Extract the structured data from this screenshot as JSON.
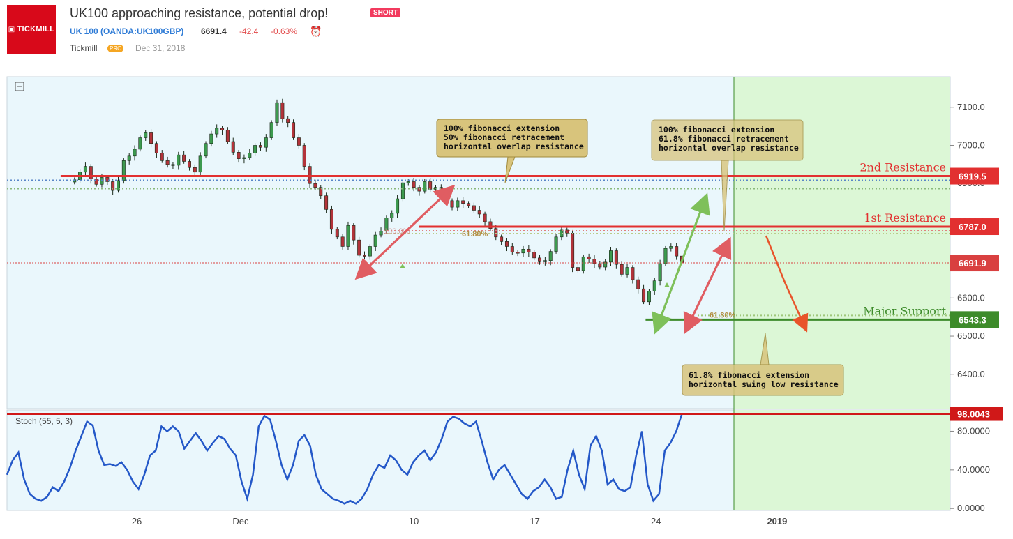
{
  "header": {
    "logo_text": "TICKMILL",
    "title": "UK100 approaching resistance, potential drop!",
    "badge": "SHORT",
    "symbol": "UK 100 (OANDA:UK100GBP)",
    "price": "6691.4",
    "change": "-42.4",
    "change_pct": "-0.63%",
    "clock_icon": "alarm-clock-icon",
    "author": "Tickmill",
    "author_badge": "PRO",
    "date": "Dec 31, 2018"
  },
  "chart_data": [
    {
      "type": "candlestick",
      "symbol": "UK100",
      "ylim": [
        6310,
        7180
      ],
      "y_ticks": [
        "7100.0",
        "7000.0",
        "6900.0",
        "6800.0",
        "6700.0",
        "6600.0",
        "6500.0",
        "6400.0"
      ],
      "x_ticks": [
        "26",
        "Dec",
        "10",
        "17",
        "24",
        "2019"
      ],
      "x_tick_values": [
        26,
        32,
        42,
        49,
        56,
        63
      ],
      "x_range": [
        18.5,
        73
      ],
      "close": [
        6910,
        6930,
        6945,
        6912,
        6898,
        6916,
        6905,
        6882,
        6908,
        6960,
        6972,
        6990,
        7020,
        7033,
        7005,
        6980,
        6960,
        6950,
        6948,
        6975,
        6958,
        6942,
        6930,
        6972,
        7005,
        7030,
        7045,
        7040,
        7010,
        6982,
        6965,
        6968,
        6980,
        7000,
        6995,
        7020,
        7060,
        7112,
        7070,
        7060,
        7020,
        7000,
        6945,
        6900,
        6890,
        6868,
        6832,
        6780,
        6760,
        6735,
        6790,
        6752,
        6712,
        6710,
        6735,
        6765,
        6775,
        6810,
        6822,
        6860,
        6902,
        6905,
        6890,
        6880,
        6905,
        6885,
        6890,
        6875,
        6855,
        6838,
        6855,
        6848,
        6842,
        6830,
        6820,
        6800,
        6782,
        6760,
        6748,
        6735,
        6720,
        6718,
        6728,
        6720,
        6705,
        6695,
        6698,
        6722,
        6760,
        6778,
        6770,
        6680,
        6672,
        6708,
        6702,
        6690,
        6681,
        6694,
        6724,
        6688,
        6662,
        6680,
        6648,
        6624,
        6590,
        6618,
        6645,
        6690,
        6730,
        6735,
        6710,
        6692
      ],
      "levels": [
        {
          "label": "2nd Resistance",
          "value": "6919.5",
          "color": "#e23030"
        },
        {
          "label": "1st Resistance",
          "value": "6787.0",
          "color": "#e23030"
        },
        {
          "label": "Major Support",
          "value": "6543.3",
          "color": "#3d8b2a"
        }
      ],
      "last_price": "6691.9",
      "fib_labels": [
        "61.80%",
        "100.0%",
        "61.80%"
      ],
      "annotations": [
        "100% fibonacci extension\n50% fibonacci retracement\nhorizontal overlap resistance",
        "100% fibonacci extension\n61.8% fibonacci retracement\nhorizontal overlap resistance",
        "61.8% fibonacci extension\nhorizontal swing low resistance"
      ]
    },
    {
      "type": "line",
      "title": "Stoch (55, 5, 3)",
      "ylim": [
        -2,
        102
      ],
      "y_ticks": [
        "80.0000",
        "40.0000",
        "0.0000"
      ],
      "current_value": "98.0043",
      "values": [
        35,
        50,
        58,
        30,
        15,
        10,
        8,
        12,
        22,
        18,
        28,
        42,
        60,
        75,
        90,
        86,
        60,
        45,
        46,
        44,
        48,
        40,
        28,
        20,
        35,
        55,
        60,
        85,
        80,
        85,
        80,
        62,
        70,
        78,
        70,
        60,
        68,
        75,
        72,
        62,
        55,
        28,
        10,
        35,
        85,
        96,
        92,
        70,
        45,
        30,
        45,
        70,
        76,
        65,
        35,
        20,
        15,
        10,
        8,
        5,
        8,
        5,
        10,
        20,
        35,
        45,
        42,
        55,
        50,
        40,
        35,
        48,
        55,
        60,
        50,
        58,
        72,
        90,
        95,
        93,
        88,
        85,
        90,
        70,
        48,
        30,
        40,
        45,
        35,
        25,
        15,
        10,
        18,
        22,
        30,
        22,
        10,
        12,
        40,
        60,
        35,
        20,
        65,
        75,
        60,
        25,
        30,
        20,
        18,
        22,
        55,
        80,
        25,
        8,
        15,
        60,
        68,
        80,
        98
      ]
    }
  ]
}
